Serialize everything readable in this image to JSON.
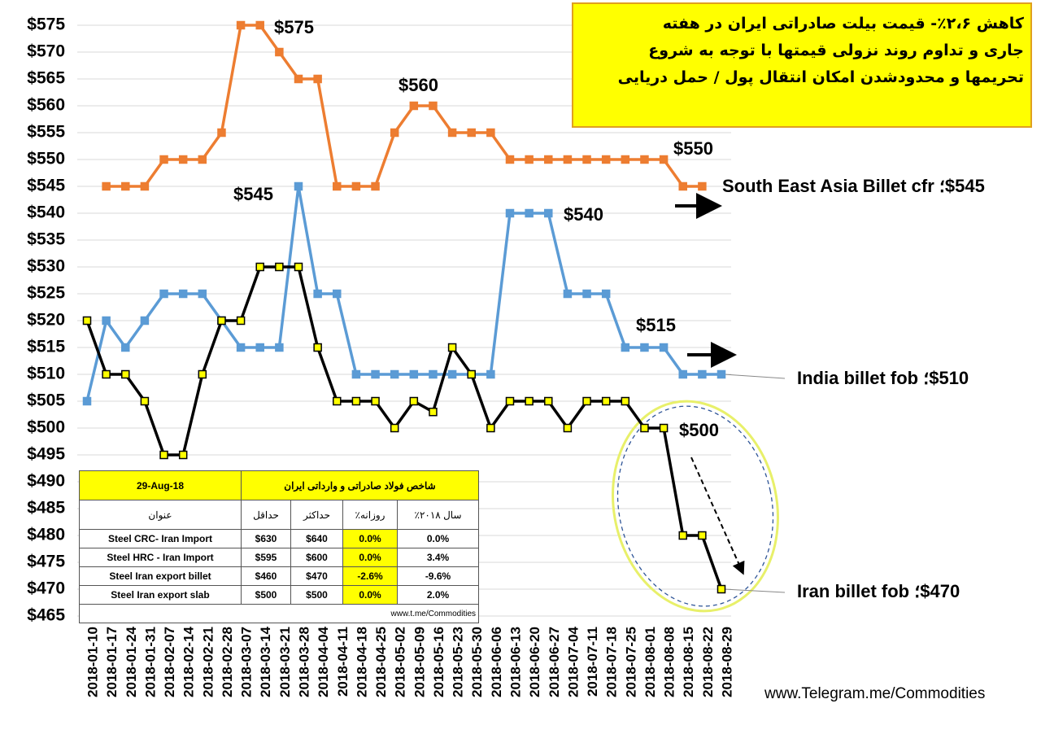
{
  "chart_data": {
    "type": "line",
    "categories": [
      "2018-01-10",
      "2018-01-17",
      "2018-01-24",
      "2018-01-31",
      "2018-02-07",
      "2018-02-14",
      "2018-02-21",
      "2018-02-28",
      "2018-03-07",
      "2018-03-14",
      "2018-03-21",
      "2018-03-28",
      "2018-04-04",
      "2018-04-11",
      "2018-04-18",
      "2018-04-25",
      "2018-05-02",
      "2018-05-09",
      "2018-05-16",
      "2018-05-23",
      "2018-05-30",
      "2018-06-06",
      "2018-06-13",
      "2018-06-20",
      "2018-06-27",
      "2018-07-04",
      "2018-07-11",
      "2018-07-18",
      "2018-07-25",
      "2018-08-01",
      "2018-08-08",
      "2018-08-15",
      "2018-08-22",
      "2018-08-29"
    ],
    "series": [
      {
        "name": "$545؛ South East Asia Billet cfr",
        "color": "#ed7d31",
        "marker_fill": "#ed7d31",
        "values": [
          null,
          545,
          545,
          545,
          550,
          550,
          550,
          555,
          575,
          575,
          570,
          565,
          565,
          545,
          545,
          545,
          555,
          560,
          560,
          555,
          555,
          555,
          550,
          550,
          550,
          550,
          550,
          550,
          550,
          550,
          550,
          545,
          545,
          null
        ]
      },
      {
        "name": "$510؛ India billet fob",
        "color": "#5b9bd5",
        "marker_fill": "#5b9bd5",
        "values": [
          505,
          520,
          515,
          520,
          525,
          525,
          525,
          520,
          515,
          515,
          515,
          545,
          525,
          525,
          510,
          510,
          510,
          510,
          510,
          510,
          510,
          510,
          540,
          540,
          540,
          525,
          525,
          525,
          515,
          515,
          515,
          510,
          510,
          510
        ]
      },
      {
        "name": "$470؛ Iran billet fob",
        "color": "#000000",
        "marker_fill": "#ffff00",
        "values": [
          520,
          510,
          510,
          505,
          495,
          495,
          510,
          520,
          520,
          530,
          530,
          530,
          515,
          505,
          505,
          505,
          500,
          505,
          503,
          515,
          510,
          500,
          505,
          505,
          505,
          500,
          505,
          505,
          505,
          500,
          500,
          480,
          480,
          470
        ]
      }
    ],
    "ylim": [
      465,
      575
    ],
    "yticks": [
      {
        "value": 465,
        "label": "$465"
      },
      {
        "value": 470,
        "label": "$470"
      },
      {
        "value": 475,
        "label": "$475"
      },
      {
        "value": 480,
        "label": "$480"
      },
      {
        "value": 485,
        "label": "$485"
      },
      {
        "value": 490,
        "label": "$490"
      },
      {
        "value": 495,
        "label": "$495"
      },
      {
        "value": 500,
        "label": "$500"
      },
      {
        "value": 505,
        "label": "$505"
      },
      {
        "value": 510,
        "label": "$510"
      },
      {
        "value": 515,
        "label": "$515"
      },
      {
        "value": 520,
        "label": "$520"
      },
      {
        "value": 525,
        "label": "$525"
      },
      {
        "value": 530,
        "label": "$530"
      },
      {
        "value": 535,
        "label": "$535"
      },
      {
        "value": 540,
        "label": "$540"
      },
      {
        "value": 545,
        "label": "$545"
      },
      {
        "value": 550,
        "label": "$550"
      },
      {
        "value": 555,
        "label": "$555"
      },
      {
        "value": 560,
        "label": "$560"
      },
      {
        "value": 565,
        "label": "$565"
      },
      {
        "value": 570,
        "label": "$570"
      },
      {
        "value": 575,
        "label": "$575"
      }
    ],
    "grid": true,
    "annotations": [
      "$575",
      "$560",
      "$545",
      "$540",
      "$515",
      "$550",
      "$500"
    ]
  },
  "info_box": [
    "کاهش ۲،۶٪- قیمت بیلت صادراتی ایران در هفته",
    "جاری و تداوم روند نزولی قیمتها با توجه به شروع",
    "تحریمها و محدودشدن امکان انتقال پول / حمل دریایی"
  ],
  "table": {
    "date": "29-Aug-18",
    "title": "شاخص فولاد صادراتی و وارداتی ایران",
    "header": [
      "عنوان",
      "حداقل",
      "حداکثر",
      "روزانه٪",
      "سال ۲۰۱۸٪"
    ],
    "rows": [
      [
        "Steel CRC- Iran Import",
        "$630",
        "$640",
        "0.0%",
        "0.0%"
      ],
      [
        "Steel HRC - Iran Import",
        "$595",
        "$600",
        "0.0%",
        "3.4%"
      ],
      [
        "Steel Iran export billet",
        "$460",
        "$470",
        "-2.6%",
        "-9.6%"
      ],
      [
        "Steel Iran export slab",
        "$500",
        "$500",
        "0.0%",
        "2.0%"
      ]
    ],
    "source": "www.t.me/Commodities"
  },
  "footer": "www.Telegram.me/Commodities"
}
